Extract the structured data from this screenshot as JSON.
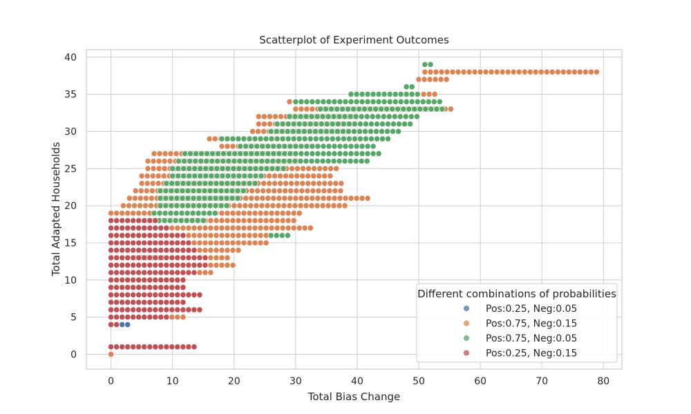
{
  "chart_data": {
    "type": "scatter",
    "title": "Scatterplot of Experiment Outcomes",
    "xlabel": "Total Bias Change",
    "ylabel": "Total Adapted Households",
    "xlim": [
      -4,
      83
    ],
    "ylim": [
      -2,
      41
    ],
    "xticks": [
      0,
      10,
      20,
      30,
      40,
      50,
      60,
      70,
      80
    ],
    "yticks": [
      0,
      5,
      10,
      15,
      20,
      25,
      30,
      35,
      40
    ],
    "grid": true,
    "legend": {
      "title": "Different combinations of probabilities",
      "position": "lower-right"
    },
    "series": [
      {
        "name": "Pos:0.25, Neg:0.05",
        "color": "#4c72b0",
        "ranges": [
          {
            "y": 1,
            "x": [
              0,
              9
            ]
          },
          {
            "y": 4,
            "x": [
              0,
              3
            ]
          },
          {
            "y": 5,
            "x": [
              0,
              5
            ]
          },
          {
            "y": 6,
            "x": [
              0,
              6
            ]
          },
          {
            "y": 7,
            "x": [
              0,
              7
            ]
          },
          {
            "y": 8,
            "x": [
              0,
              8
            ]
          },
          {
            "y": 9,
            "x": [
              0,
              8
            ]
          },
          {
            "y": 10,
            "x": [
              0,
              7
            ]
          },
          {
            "y": 11,
            "x": [
              0,
              7
            ]
          },
          {
            "y": 12,
            "x": [
              0,
              7
            ]
          },
          {
            "y": 13,
            "x": [
              0,
              8
            ]
          },
          {
            "y": 14,
            "x": [
              0,
              8
            ]
          },
          {
            "y": 15,
            "x": [
              0,
              6
            ]
          },
          {
            "y": 16,
            "x": [
              0,
              7
            ]
          },
          {
            "y": 17,
            "x": [
              0,
              7
            ]
          },
          {
            "y": 18,
            "x": [
              0,
              7
            ]
          },
          {
            "y": 19,
            "x": [
              1,
              8
            ]
          },
          {
            "y": 20,
            "x": [
              2,
              9
            ]
          },
          {
            "y": 21,
            "x": [
              4,
              10
            ]
          },
          {
            "y": 22,
            "x": [
              5,
              10
            ]
          },
          {
            "y": 23,
            "x": [
              6,
              11
            ]
          },
          {
            "y": 24,
            "x": [
              7,
              11
            ]
          },
          {
            "y": 25,
            "x": [
              8,
              11
            ]
          }
        ]
      },
      {
        "name": "Pos:0.75, Neg:0.15",
        "color": "#dd8452",
        "ranges": [
          {
            "y": 0,
            "x": [
              0,
              0
            ]
          },
          {
            "y": 1,
            "x": [
              0,
              12
            ]
          },
          {
            "y": 4,
            "x": [
              0,
              1.5
            ]
          },
          {
            "y": 5,
            "x": [
              0,
              12
            ]
          },
          {
            "y": 6,
            "x": [
              0,
              14
            ]
          },
          {
            "y": 7,
            "x": [
              0,
              11
            ]
          },
          {
            "y": 8,
            "x": [
              0,
              12
            ]
          },
          {
            "y": 9,
            "x": [
              0,
              11
            ]
          },
          {
            "y": 10,
            "x": [
              0,
              12
            ]
          },
          {
            "y": 11,
            "x": [
              0,
              17
            ]
          },
          {
            "y": 12,
            "x": [
              0,
              20
            ]
          },
          {
            "y": 13,
            "x": [
              0,
              19
            ]
          },
          {
            "y": 14,
            "x": [
              0,
              21
            ]
          },
          {
            "y": 15,
            "x": [
              0,
              26
            ]
          },
          {
            "y": 16,
            "x": [
              0,
              27
            ]
          },
          {
            "y": 17,
            "x": [
              0,
              33
            ]
          },
          {
            "y": 18,
            "x": [
              0,
              30
            ]
          },
          {
            "y": 19,
            "x": [
              0,
              31
            ]
          },
          {
            "y": 20,
            "x": [
              2,
              38.5
            ]
          },
          {
            "y": 21,
            "x": [
              3,
              42
            ]
          },
          {
            "y": 22,
            "x": [
              4,
              38
            ]
          },
          {
            "y": 23,
            "x": [
              5,
              38
            ]
          },
          {
            "y": 24,
            "x": [
              5,
              36
            ]
          },
          {
            "y": 25,
            "x": [
              6,
              37
            ]
          },
          {
            "y": 26,
            "x": [
              6,
              31
            ]
          },
          {
            "y": 27,
            "x": [
              7,
              30
            ]
          },
          {
            "y": 28,
            "x": [
              18,
              34
            ]
          },
          {
            "y": 29,
            "x": [
              16,
              32
            ]
          },
          {
            "y": 30,
            "x": [
              23,
              39
            ]
          },
          {
            "y": 31,
            "x": [
              24,
              40
            ]
          },
          {
            "y": 32,
            "x": [
              24,
              40
            ]
          },
          {
            "y": 33,
            "x": [
              30,
              56
            ]
          },
          {
            "y": 34,
            "x": [
              29,
              45
            ]
          },
          {
            "y": 35,
            "x": [
              40,
              53
            ]
          },
          {
            "y": 36,
            "x": [
              48,
              49
            ]
          },
          {
            "y": 37,
            "x": [
              50,
              55
            ]
          },
          {
            "y": 38,
            "x": [
              51,
              79
            ]
          }
        ]
      },
      {
        "name": "Pos:0.75, Neg:0.05",
        "color": "#55a868",
        "ranges": [
          {
            "y": 7,
            "x": [
              0,
              1
            ]
          },
          {
            "y": 9,
            "x": [
              0,
              2
            ]
          },
          {
            "y": 12,
            "x": [
              0,
              3
            ]
          },
          {
            "y": 13,
            "x": [
              4,
              9
            ]
          },
          {
            "y": 14,
            "x": [
              1,
              5
            ]
          },
          {
            "y": 15,
            "x": [
              0,
              9
            ]
          },
          {
            "y": 16,
            "x": [
              26,
              29
            ]
          },
          {
            "y": 18,
            "x": [
              6,
              15
            ]
          },
          {
            "y": 19,
            "x": [
              7,
              17
            ]
          },
          {
            "y": 20,
            "x": [
              8,
              19
            ]
          },
          {
            "y": 21,
            "x": [
              8,
              21
            ]
          },
          {
            "y": 22,
            "x": [
              8,
              22
            ]
          },
          {
            "y": 23,
            "x": [
              9,
              24
            ]
          },
          {
            "y": 24,
            "x": [
              10,
              25
            ]
          },
          {
            "y": 25,
            "x": [
              10,
              28
            ]
          },
          {
            "y": 26,
            "x": [
              11,
              42
            ]
          },
          {
            "y": 27,
            "x": [
              12,
              44
            ]
          },
          {
            "y": 28,
            "x": [
              21,
              43
            ]
          },
          {
            "y": 29,
            "x": [
              18,
              45
            ]
          },
          {
            "y": 30,
            "x": [
              26,
              47
            ]
          },
          {
            "y": 31,
            "x": [
              27,
              49
            ]
          },
          {
            "y": 32,
            "x": [
              29,
              50
            ]
          },
          {
            "y": 33,
            "x": [
              34,
              54
            ]
          },
          {
            "y": 34,
            "x": [
              30,
              54
            ]
          },
          {
            "y": 35,
            "x": [
              39,
              50
            ]
          },
          {
            "y": 36,
            "x": [
              48,
              49
            ]
          },
          {
            "y": 39,
            "x": [
              51,
              52
            ]
          }
        ]
      },
      {
        "name": "Pos:0.25, Neg:0.15",
        "color": "#c44e52",
        "ranges": [
          {
            "y": 1,
            "x": [
              0,
              13.5
            ]
          },
          {
            "y": 4,
            "x": [
              0,
              1
            ]
          },
          {
            "y": 5,
            "x": [
              0,
              9
            ]
          },
          {
            "y": 6,
            "x": [
              0,
              15
            ]
          },
          {
            "y": 7,
            "x": [
              0,
              12
            ]
          },
          {
            "y": 8,
            "x": [
              0,
              15
            ]
          },
          {
            "y": 9,
            "x": [
              0,
              12
            ]
          },
          {
            "y": 10,
            "x": [
              0,
              12
            ]
          },
          {
            "y": 11,
            "x": [
              0,
              14
            ]
          },
          {
            "y": 12,
            "x": [
              0,
              16
            ]
          },
          {
            "y": 13,
            "x": [
              0,
              16
            ]
          },
          {
            "y": 14,
            "x": [
              0,
              14
            ]
          },
          {
            "y": 15,
            "x": [
              0,
              13
            ]
          },
          {
            "y": 16,
            "x": [
              0,
              12
            ]
          },
          {
            "y": 17,
            "x": [
              0,
              9
            ]
          },
          {
            "y": 18,
            "x": [
              0,
              8
            ]
          }
        ]
      }
    ]
  }
}
